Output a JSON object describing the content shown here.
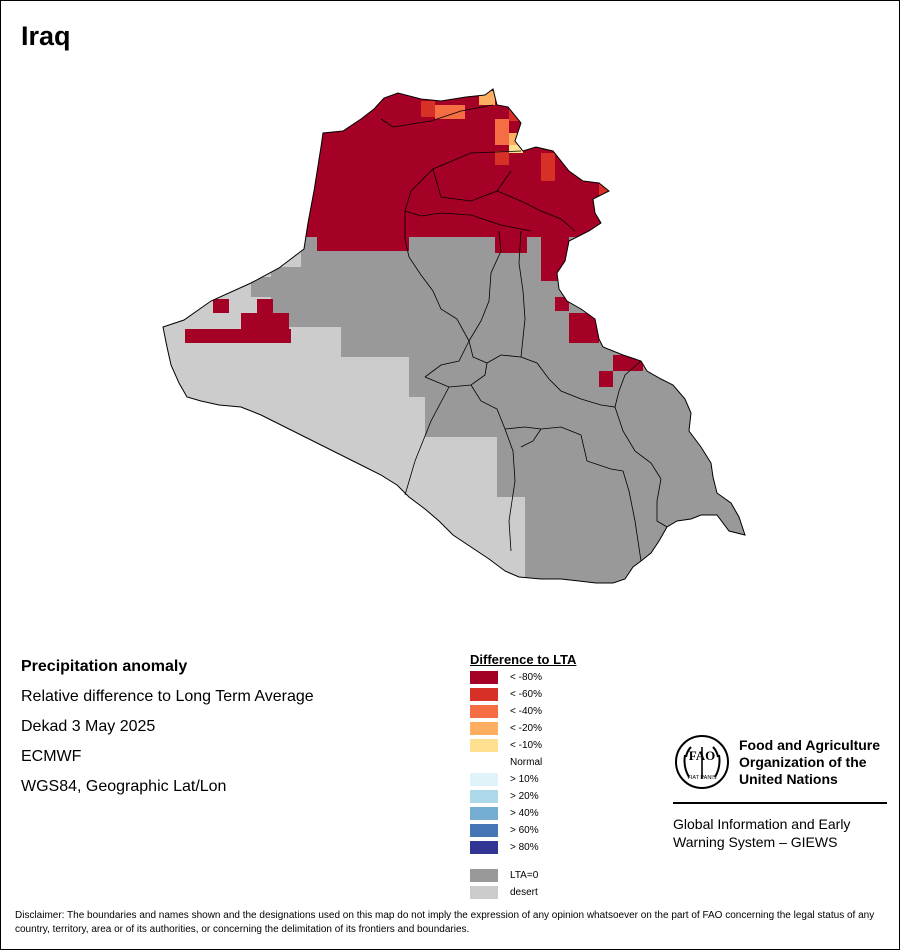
{
  "title": "Iraq",
  "info": {
    "heading": "Precipitation anomaly",
    "subtitle": "Relative difference to Long Term Average",
    "period": "Dekad 3 May 2025",
    "source": "ECMWF",
    "projection": "WGS84, Geographic Lat/Lon"
  },
  "legend": {
    "title": "Difference to LTA",
    "items": [
      {
        "label": "< -80%",
        "color": "#a50026"
      },
      {
        "label": "< -60%",
        "color": "#d73027"
      },
      {
        "label": "< -40%",
        "color": "#f46d43"
      },
      {
        "label": "< -20%",
        "color": "#fdae61"
      },
      {
        "label": "< -10%",
        "color": "#fee090"
      },
      {
        "label": "Normal",
        "color": "#ffffff"
      },
      {
        "label": "> 10%",
        "color": "#e0f3f8"
      },
      {
        "label": "> 20%",
        "color": "#abd9e9"
      },
      {
        "label": "> 40%",
        "color": "#74add1"
      },
      {
        "label": "> 60%",
        "color": "#4575b4"
      },
      {
        "label": "> 80%",
        "color": "#313695"
      },
      {
        "label": "LTA=0",
        "color": "#999999"
      },
      {
        "label": "desert",
        "color": "#cccccc"
      }
    ]
  },
  "logo": {
    "org_name": "Food and Agriculture Organization of the United Nations",
    "program": "Global Information and Early Warning System – GIEWS",
    "emblem_letters": "FAO",
    "emblem_motto": "FIAT PANIS"
  },
  "disclaimer": "Disclaimer: The boundaries and names shown and the designations used on this map do not imply the expression of any opinion whatsoever on the part of FAO concerning the legal status of any country, territory, area or of its authorities, or concerning the delimitation of its frontiers and boundaries.",
  "map_colors": {
    "severe_deficit": "#a50026",
    "deficit_60": "#d73027",
    "deficit_40": "#f46d43",
    "deficit_20": "#fdae61",
    "deficit_10": "#fee090",
    "lta_zero": "#999999",
    "desert": "#cccccc"
  }
}
